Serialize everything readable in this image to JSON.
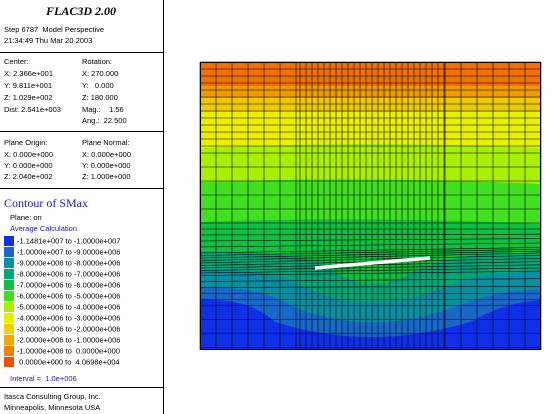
{
  "header": {
    "title": "FLAC3D 2.00",
    "step": "Step 6787  Model Perspective",
    "timestamp": "21:34:49 Thu Mar 20 2003"
  },
  "view": {
    "center_label": "Center:",
    "center": [
      "X: 2.366e+001",
      "Y: 9.811e+001",
      "Z: 1.029e+002"
    ],
    "rotation_label": "Rotation:",
    "rotation": [
      "X: 270.000",
      "Y:   0.000",
      "Z: 180.000"
    ],
    "dist": "Dist: 2.541e+003",
    "mag": "Mag.:    1.56",
    "ang": "Ang.:  22.500"
  },
  "plane": {
    "origin_label": "Plane Origin:",
    "origin": [
      "X: 0.000e+000",
      "Y: 0.000e+000",
      "Z: 2.040e+002"
    ],
    "normal_label": "Plane Normal:",
    "normal": [
      "X: 0.000e+000",
      "Y: 0.000e+000",
      "Z: 1.000e+000"
    ]
  },
  "contour": {
    "title": "Contour of SMax",
    "plane": "Plane: on",
    "calculation": "Average Calculation",
    "legend": [
      {
        "label": "-1.1481e+007 to -1.0000e+007",
        "color": "#1030e8"
      },
      {
        "label": "-1.0000e+007 to -9.0000e+006",
        "color": "#1868c8"
      },
      {
        "label": "-9.0000e+006 to -8.0000e+006",
        "color": "#0890a0"
      },
      {
        "label": "-8.0000e+006 to -7.0000e+006",
        "color": "#00a878"
      },
      {
        "label": "-7.0000e+006 to -6.0000e+006",
        "color": "#10c040"
      },
      {
        "label": "-6.0000e+006 to -5.0000e+006",
        "color": "#40e020"
      },
      {
        "label": "-5.0000e+006 to -4.0000e+006",
        "color": "#a8f000"
      },
      {
        "label": "-4.0000e+006 to -3.0000e+006",
        "color": "#e8f000"
      },
      {
        "label": "-3.0000e+006 to -2.0000e+006",
        "color": "#f0d000"
      },
      {
        "label": "-2.0000e+006 to -1.0000e+006",
        "color": "#f0a800"
      },
      {
        "label": "-1.0000e+006 to  0.0000e+000",
        "color": "#f08000"
      },
      {
        "label": " 0.0000e+000 to  4.0698e+004",
        "color": "#f05000"
      }
    ],
    "interval": "Interval =  1.0e+006"
  },
  "footer": [
    "Itasca Consulting Group, Inc.",
    "Minneapolis, Minnesota USA"
  ]
}
